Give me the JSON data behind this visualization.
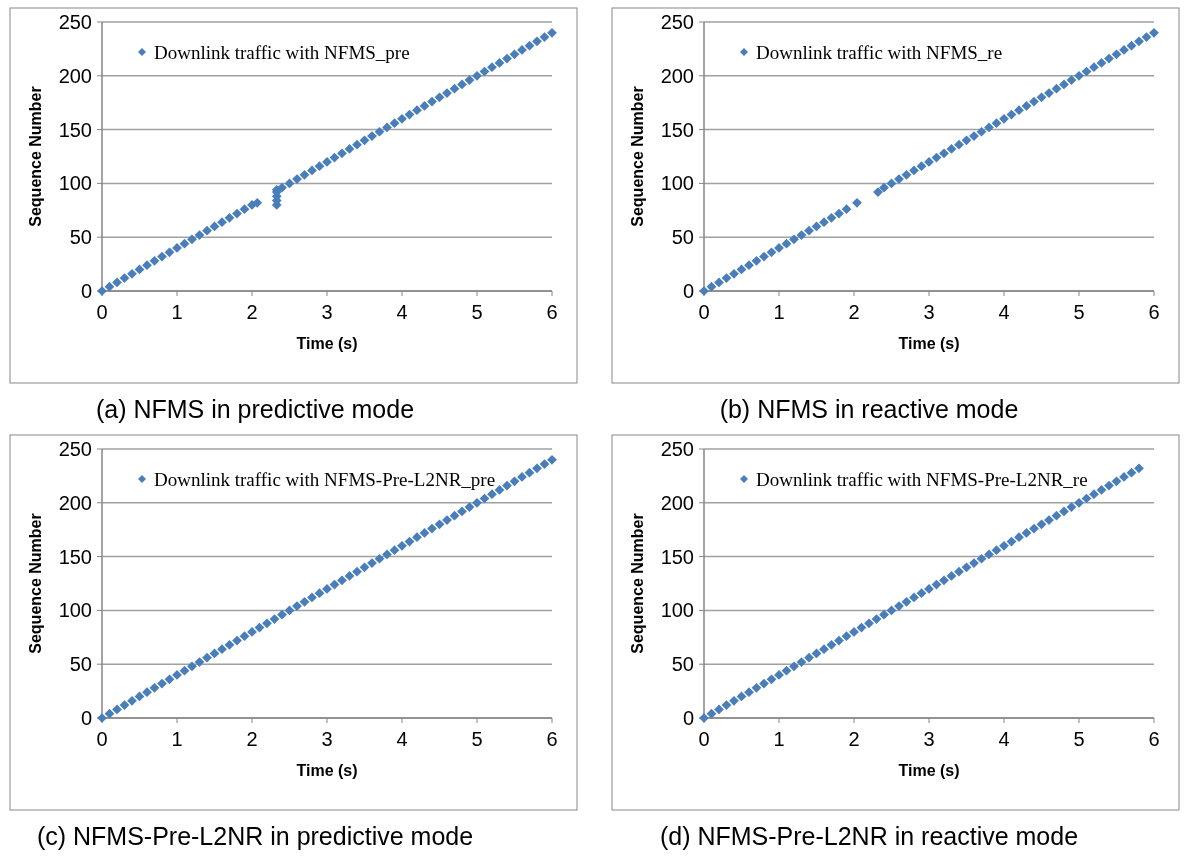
{
  "chart_data": [
    {
      "type": "scatter",
      "xlabel": "Time (s)",
      "ylabel": "Sequence Number",
      "xlim": [
        0,
        6
      ],
      "ylim": [
        0,
        250
      ],
      "xticks": [
        0,
        1,
        2,
        3,
        4,
        5,
        6
      ],
      "yticks": [
        0,
        50,
        100,
        150,
        200,
        250
      ],
      "grid": "y",
      "legend": "top",
      "marker": "diamond",
      "annotations": [
        "(a) NFMS in predictive mode"
      ],
      "series": [
        {
          "name": "Downlink traffic with NFMS_pre",
          "color": "#4a7ebb",
          "x": [
            0,
            0.1,
            0.2,
            0.3,
            0.4,
            0.5,
            0.6,
            0.7,
            0.8,
            0.9,
            1,
            1.1,
            1.2,
            1.3,
            1.4,
            1.5,
            1.6,
            1.7,
            1.8,
            1.9,
            2,
            2.07,
            2.33,
            2.33,
            2.33,
            2.33,
            2.33,
            2.4,
            2.5,
            2.6,
            2.7,
            2.8,
            2.9,
            3,
            3.1,
            3.2,
            3.3,
            3.4,
            3.5,
            3.6,
            3.7,
            3.8,
            3.9,
            4,
            4.1,
            4.2,
            4.3,
            4.4,
            4.5,
            4.6,
            4.7,
            4.8,
            4.9,
            5,
            5.1,
            5.2,
            5.3,
            5.4,
            5.5,
            5.6,
            5.7,
            5.8,
            5.9,
            6
          ],
          "values": [
            0,
            4,
            8,
            12,
            16,
            20,
            24,
            28,
            32,
            36,
            40,
            44,
            48,
            52,
            56,
            60,
            64,
            68,
            72,
            76,
            80,
            82,
            80,
            84,
            88,
            92,
            94,
            96,
            100,
            104,
            108,
            112,
            116,
            120,
            124,
            128,
            132,
            136,
            140,
            144,
            148,
            152,
            156,
            160,
            164,
            168,
            172,
            176,
            180,
            184,
            188,
            192,
            196,
            200,
            204,
            208,
            212,
            216,
            220,
            224,
            228,
            232,
            236,
            240
          ]
        }
      ]
    },
    {
      "type": "scatter",
      "xlabel": "Time (s)",
      "ylabel": "Sequence Number",
      "xlim": [
        0,
        6
      ],
      "ylim": [
        0,
        250
      ],
      "xticks": [
        0,
        1,
        2,
        3,
        4,
        5,
        6
      ],
      "yticks": [
        0,
        50,
        100,
        150,
        200,
        250
      ],
      "grid": "y",
      "legend": "top",
      "marker": "diamond",
      "annotations": [
        "(b) NFMS in reactive mode"
      ],
      "series": [
        {
          "name": "Downlink traffic with NFMS_re",
          "color": "#4a7ebb",
          "x": [
            0,
            0.1,
            0.2,
            0.3,
            0.4,
            0.5,
            0.6,
            0.7,
            0.8,
            0.9,
            1,
            1.1,
            1.2,
            1.3,
            1.4,
            1.5,
            1.6,
            1.7,
            1.8,
            1.9,
            2.04,
            2.32,
            2.4,
            2.5,
            2.6,
            2.7,
            2.8,
            2.9,
            3,
            3.1,
            3.2,
            3.3,
            3.4,
            3.5,
            3.6,
            3.7,
            3.8,
            3.9,
            4,
            4.1,
            4.2,
            4.3,
            4.4,
            4.5,
            4.6,
            4.7,
            4.8,
            4.9,
            5,
            5.1,
            5.2,
            5.3,
            5.4,
            5.5,
            5.6,
            5.7,
            5.8,
            5.9,
            6
          ],
          "values": [
            0,
            4,
            8,
            12,
            16,
            20,
            24,
            28,
            32,
            36,
            40,
            44,
            48,
            52,
            56,
            60,
            64,
            68,
            72,
            76,
            82,
            92,
            96,
            100,
            104,
            108,
            112,
            116,
            120,
            124,
            128,
            132,
            136,
            140,
            144,
            148,
            152,
            156,
            160,
            164,
            168,
            172,
            176,
            180,
            184,
            188,
            192,
            196,
            200,
            204,
            208,
            212,
            216,
            220,
            224,
            228,
            232,
            236,
            240
          ]
        }
      ]
    },
    {
      "type": "scatter",
      "xlabel": "Time (s)",
      "ylabel": "Sequence Number",
      "xlim": [
        0,
        6
      ],
      "ylim": [
        0,
        250
      ],
      "xticks": [
        0,
        1,
        2,
        3,
        4,
        5,
        6
      ],
      "yticks": [
        0,
        50,
        100,
        150,
        200,
        250
      ],
      "grid": "y",
      "legend": "top",
      "marker": "diamond",
      "annotations": [
        "(c) NFMS-Pre-L2NR in predictive mode"
      ],
      "series": [
        {
          "name": "Downlink traffic with NFMS-Pre-L2NR_pre",
          "color": "#4a7ebb",
          "x": [
            0,
            0.1,
            0.2,
            0.3,
            0.4,
            0.5,
            0.6,
            0.7,
            0.8,
            0.9,
            1,
            1.1,
            1.2,
            1.3,
            1.4,
            1.5,
            1.6,
            1.7,
            1.8,
            1.9,
            2,
            2.1,
            2.2,
            2.3,
            2.4,
            2.5,
            2.6,
            2.7,
            2.8,
            2.9,
            3,
            3.1,
            3.2,
            3.3,
            3.4,
            3.5,
            3.6,
            3.7,
            3.8,
            3.9,
            4,
            4.1,
            4.2,
            4.3,
            4.4,
            4.5,
            4.6,
            4.7,
            4.8,
            4.9,
            5,
            5.1,
            5.2,
            5.3,
            5.4,
            5.5,
            5.6,
            5.7,
            5.8,
            5.9,
            6
          ],
          "values": [
            0,
            4,
            8,
            12,
            16,
            20,
            24,
            28,
            32,
            36,
            40,
            44,
            48,
            52,
            56,
            60,
            64,
            68,
            72,
            76,
            80,
            84,
            88,
            92,
            96,
            100,
            104,
            108,
            112,
            116,
            120,
            124,
            128,
            132,
            136,
            140,
            144,
            148,
            152,
            156,
            160,
            164,
            168,
            172,
            176,
            180,
            184,
            188,
            192,
            196,
            200,
            204,
            208,
            212,
            216,
            220,
            224,
            228,
            232,
            236,
            240
          ]
        }
      ]
    },
    {
      "type": "scatter",
      "xlabel": "Time (s)",
      "ylabel": "Sequence Number",
      "xlim": [
        0,
        6
      ],
      "ylim": [
        0,
        250
      ],
      "xticks": [
        0,
        1,
        2,
        3,
        4,
        5,
        6
      ],
      "yticks": [
        0,
        50,
        100,
        150,
        200,
        250
      ],
      "grid": "y",
      "legend": "top",
      "marker": "diamond",
      "annotations": [
        "(d) NFMS-Pre-L2NR in reactive mode"
      ],
      "series": [
        {
          "name": "Downlink traffic with NFMS-Pre-L2NR_re",
          "color": "#4a7ebb",
          "x": [
            0,
            0.1,
            0.2,
            0.3,
            0.4,
            0.5,
            0.6,
            0.7,
            0.8,
            0.9,
            1,
            1.1,
            1.2,
            1.3,
            1.4,
            1.5,
            1.6,
            1.7,
            1.8,
            1.9,
            2,
            2.1,
            2.2,
            2.3,
            2.4,
            2.5,
            2.6,
            2.7,
            2.8,
            2.9,
            3,
            3.1,
            3.2,
            3.3,
            3.4,
            3.5,
            3.6,
            3.7,
            3.8,
            3.9,
            4,
            4.1,
            4.2,
            4.3,
            4.4,
            4.5,
            4.6,
            4.7,
            4.8,
            4.9,
            5,
            5.1,
            5.2,
            5.3,
            5.4,
            5.5,
            5.6,
            5.7,
            5.8
          ],
          "values": [
            0,
            4,
            8,
            12,
            16,
            20,
            24,
            28,
            32,
            36,
            40,
            44,
            48,
            52,
            56,
            60,
            64,
            68,
            72,
            76,
            80,
            84,
            88,
            92,
            96,
            100,
            104,
            108,
            112,
            116,
            120,
            124,
            128,
            132,
            136,
            140,
            144,
            148,
            152,
            156,
            160,
            164,
            168,
            172,
            176,
            180,
            184,
            188,
            192,
            196,
            200,
            204,
            208,
            212,
            216,
            220,
            224,
            228,
            232
          ]
        }
      ]
    }
  ]
}
